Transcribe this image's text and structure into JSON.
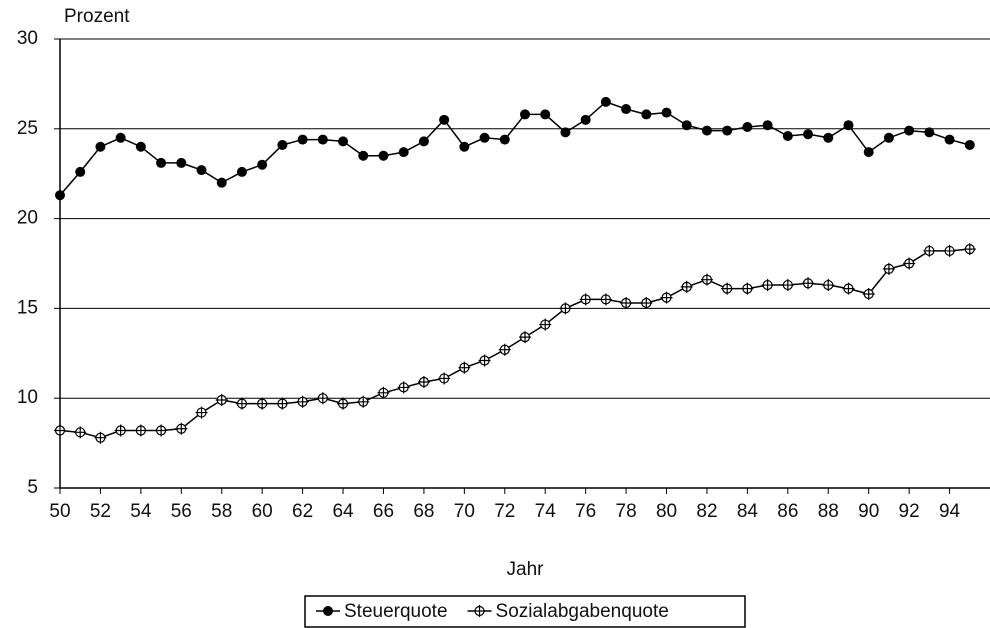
{
  "chart_data": {
    "type": "line",
    "y_label": "Prozent",
    "x_label": "Jahr",
    "x": [
      50,
      51,
      52,
      53,
      54,
      55,
      56,
      57,
      58,
      59,
      60,
      61,
      62,
      63,
      64,
      65,
      66,
      67,
      68,
      69,
      70,
      71,
      72,
      73,
      74,
      75,
      76,
      77,
      78,
      79,
      80,
      81,
      82,
      83,
      84,
      85,
      86,
      87,
      88,
      89,
      90,
      91,
      92,
      93,
      94,
      95
    ],
    "series": [
      {
        "name": "Steuerquote",
        "color": "#000000",
        "marker": "filled",
        "values": [
          21.3,
          22.6,
          24.0,
          24.5,
          24.0,
          23.1,
          23.1,
          22.7,
          22.0,
          22.6,
          23.0,
          24.1,
          24.4,
          24.4,
          24.3,
          23.5,
          23.5,
          23.7,
          24.3,
          25.5,
          24.0,
          24.5,
          24.4,
          25.8,
          25.8,
          24.8,
          25.5,
          26.5,
          26.1,
          25.8,
          25.9,
          25.2,
          24.9,
          24.9,
          25.1,
          25.2,
          24.6,
          24.7,
          24.5,
          25.2,
          23.7,
          24.5,
          24.9,
          24.8,
          24.4,
          24.1
        ]
      },
      {
        "name": "Sozialabgabenquote",
        "color": "#000000",
        "marker": "open",
        "values": [
          8.2,
          8.1,
          7.8,
          8.2,
          8.2,
          8.2,
          8.3,
          9.2,
          9.9,
          9.7,
          9.7,
          9.7,
          9.8,
          10.0,
          9.7,
          9.8,
          10.3,
          10.6,
          10.9,
          11.1,
          11.7,
          12.1,
          12.7,
          13.4,
          14.1,
          15.0,
          15.5,
          15.5,
          15.3,
          15.3,
          15.6,
          16.2,
          16.6,
          16.1,
          16.1,
          16.3,
          16.3,
          16.4,
          16.3,
          16.1,
          15.8,
          17.2,
          17.5,
          18.2,
          18.2,
          18.3
        ]
      }
    ],
    "xlim": [
      50,
      96
    ],
    "xticks": [
      50,
      52,
      54,
      56,
      58,
      60,
      62,
      64,
      66,
      68,
      70,
      72,
      74,
      76,
      78,
      80,
      82,
      84,
      86,
      88,
      90,
      92,
      94
    ],
    "ylim": [
      5,
      30
    ],
    "yticks": [
      5,
      10,
      15,
      20,
      25,
      30
    ],
    "grid": true,
    "legend": "bottom"
  }
}
